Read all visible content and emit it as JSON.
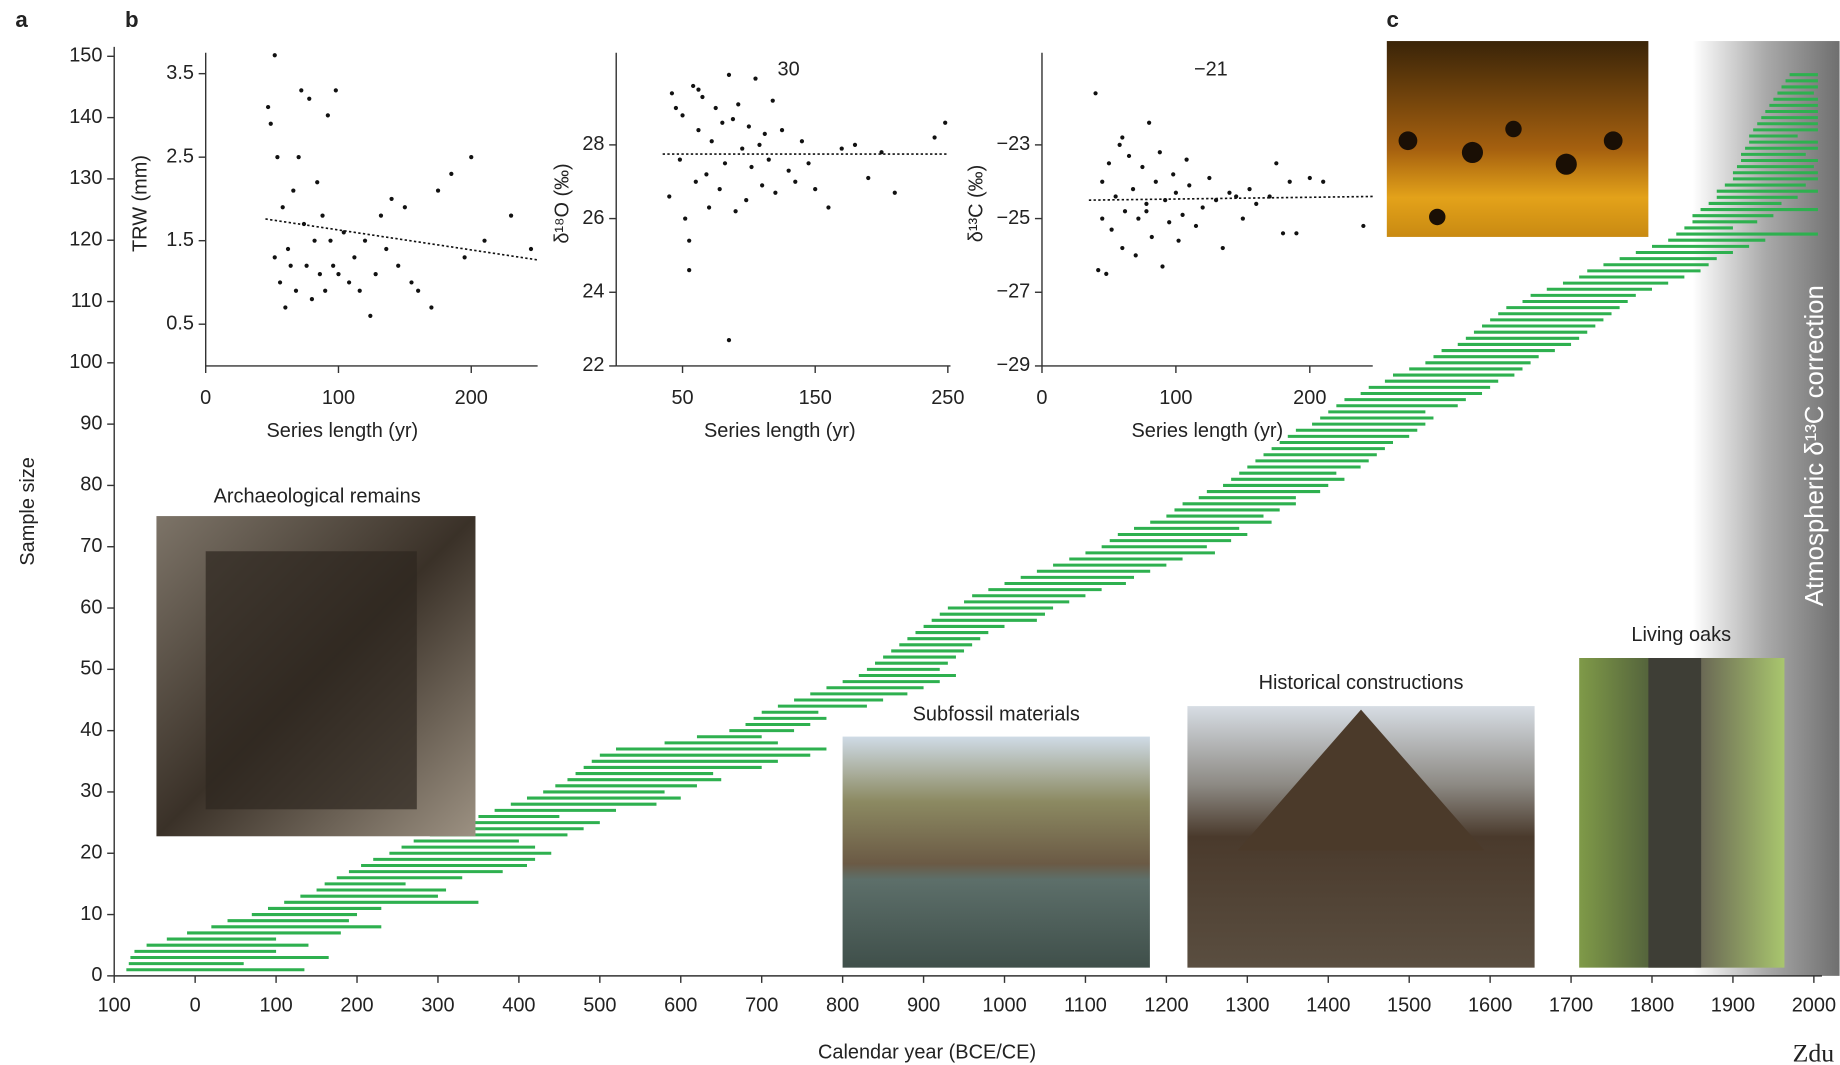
{
  "chart_data": [
    {
      "type": "bar",
      "xlabel": "Calendar year (BCE/CE)",
      "ylabel": "Sample size",
      "xlim": [
        -100,
        2010
      ],
      "xticks": [
        {
          "value": -100,
          "label": "100"
        },
        0,
        100,
        200,
        300,
        400,
        500,
        600,
        700,
        800,
        900,
        1000,
        1100,
        1200,
        1300,
        1400,
        1500,
        1600,
        1700,
        1800,
        1900,
        2000
      ],
      "ylim": [
        0,
        150
      ],
      "yticks": [
        0,
        10,
        20,
        30,
        40,
        50,
        60,
        70,
        80,
        90,
        100,
        110,
        120,
        130,
        140,
        150
      ],
      "color": "#2eb04f",
      "starts": [
        -85,
        -82,
        -80,
        -75,
        -60,
        -35,
        -10,
        20,
        40,
        70,
        90,
        110,
        130,
        150,
        160,
        175,
        190,
        205,
        220,
        240,
        255,
        270,
        290,
        310,
        330,
        350,
        370,
        390,
        410,
        430,
        445,
        460,
        470,
        480,
        490,
        500,
        520,
        580,
        620,
        660,
        680,
        690,
        700,
        720,
        740,
        760,
        780,
        800,
        820,
        830,
        840,
        850,
        860,
        870,
        880,
        890,
        900,
        910,
        920,
        930,
        950,
        960,
        980,
        1000,
        1020,
        1040,
        1060,
        1080,
        1100,
        1120,
        1130,
        1140,
        1160,
        1180,
        1200,
        1210,
        1220,
        1240,
        1250,
        1270,
        1280,
        1290,
        1300,
        1310,
        1320,
        1330,
        1340,
        1350,
        1360,
        1380,
        1390,
        1400,
        1410,
        1420,
        1440,
        1450,
        1470,
        1480,
        1500,
        1520,
        1530,
        1540,
        1560,
        1570,
        1580,
        1590,
        1600,
        1610,
        1620,
        1640,
        1650,
        1670,
        1690,
        1710,
        1720,
        1740,
        1760,
        1780,
        1800,
        1820,
        1830,
        1840,
        1850,
        1850,
        1860,
        1870,
        1880,
        1880,
        1890,
        1900,
        1900,
        1905,
        1910,
        1910,
        1915,
        1920,
        1920,
        1925,
        1930,
        1935,
        1940,
        1945,
        1950,
        1955,
        1960,
        1965,
        1970
      ],
      "ends": [
        135,
        60,
        165,
        100,
        140,
        100,
        180,
        230,
        190,
        200,
        230,
        350,
        300,
        310,
        260,
        330,
        380,
        410,
        420,
        440,
        420,
        400,
        460,
        480,
        500,
        450,
        520,
        570,
        600,
        580,
        620,
        650,
        640,
        700,
        720,
        760,
        780,
        720,
        700,
        740,
        760,
        780,
        770,
        830,
        850,
        880,
        900,
        920,
        940,
        920,
        930,
        940,
        950,
        960,
        970,
        980,
        1000,
        1040,
        1050,
        1060,
        1080,
        1100,
        1120,
        1150,
        1160,
        1180,
        1200,
        1220,
        1260,
        1250,
        1280,
        1300,
        1290,
        1330,
        1320,
        1340,
        1360,
        1360,
        1390,
        1400,
        1420,
        1410,
        1440,
        1450,
        1460,
        1470,
        1480,
        1500,
        1510,
        1520,
        1530,
        1520,
        1560,
        1570,
        1590,
        1600,
        1610,
        1630,
        1640,
        1650,
        1660,
        1680,
        1700,
        1710,
        1720,
        1730,
        1740,
        1750,
        1760,
        1770,
        1780,
        1800,
        1820,
        1840,
        1860,
        1870,
        1880,
        1900,
        1920,
        1940,
        2005,
        1900,
        1930,
        1950,
        2005,
        1960,
        1980,
        2005,
        1990,
        2005,
        2005,
        2000,
        2005,
        1990,
        2005,
        2005,
        1980,
        2005,
        2005,
        2005,
        2005,
        2005,
        2005,
        2000,
        2005,
        2005,
        2005
      ],
      "correction_band": {
        "start": 1850,
        "label": "Atmospheric δ¹³C correction"
      },
      "panel_labels": [
        "a",
        "b",
        "c"
      ],
      "photo_captions": [
        "Archaeological remains",
        "Subfossil materials",
        "Historical constructions",
        "Living oaks"
      ],
      "corner_text": "Zdu"
    },
    {
      "type": "scatter",
      "xlabel": "Series length (yr)",
      "ylabel": "TRW (mm)",
      "color": "#111111",
      "x": [
        47,
        49,
        52,
        54,
        56,
        58,
        60,
        62,
        64,
        66,
        68,
        70,
        72,
        74,
        76,
        78,
        80,
        82,
        84,
        86,
        88,
        90,
        92,
        94,
        96,
        98,
        100,
        104,
        108,
        112,
        116,
        120,
        124,
        128,
        132,
        136,
        140,
        145,
        150,
        155,
        160,
        170,
        175,
        185,
        195,
        200,
        210,
        230,
        245,
        52
      ],
      "values": [
        3.1,
        2.9,
        1.3,
        2.5,
        1.0,
        1.9,
        0.7,
        1.4,
        1.2,
        2.1,
        0.9,
        2.5,
        3.3,
        1.7,
        1.2,
        3.2,
        0.8,
        1.5,
        2.2,
        1.1,
        1.8,
        0.9,
        3.0,
        1.5,
        1.2,
        3.3,
        1.1,
        1.6,
        1.0,
        1.3,
        0.9,
        1.5,
        0.6,
        1.1,
        1.8,
        1.4,
        2.0,
        1.2,
        1.9,
        1.0,
        0.9,
        0.7,
        2.1,
        2.3,
        1.3,
        2.5,
        1.5,
        1.8,
        1.4,
        3.72
      ],
      "xlim": [
        0,
        250
      ],
      "xticks": [
        0,
        100,
        200
      ],
      "ylim": [
        0,
        3.75
      ],
      "yticks": [
        0.5,
        1.5,
        2.5,
        3.5
      ],
      "trend": {
        "x": [
          45,
          250
        ],
        "y": [
          1.76,
          1.27
        ]
      }
    },
    {
      "type": "scatter",
      "xlabel": "Series length (yr)",
      "ylabel": "δ¹⁸O (‰)",
      "color": "#111111",
      "annotation": "30",
      "x": [
        40,
        42,
        45,
        48,
        50,
        52,
        55,
        58,
        60,
        62,
        65,
        68,
        70,
        72,
        75,
        78,
        80,
        82,
        85,
        88,
        90,
        92,
        95,
        98,
        100,
        102,
        105,
        108,
        110,
        112,
        115,
        118,
        120,
        125,
        130,
        135,
        140,
        145,
        150,
        160,
        170,
        180,
        190,
        200,
        210,
        240,
        248,
        85,
        55,
        62
      ],
      "values": [
        26.6,
        29.4,
        29.0,
        27.6,
        28.8,
        26.0,
        25.4,
        29.6,
        27.0,
        28.4,
        29.3,
        27.2,
        26.3,
        28.1,
        29.0,
        26.8,
        28.6,
        27.5,
        22.7,
        28.7,
        26.2,
        29.1,
        27.9,
        26.5,
        28.5,
        27.4,
        29.8,
        28.0,
        26.9,
        28.3,
        27.6,
        29.2,
        26.7,
        28.4,
        27.3,
        27.0,
        28.1,
        27.5,
        26.8,
        26.3,
        27.9,
        28.0,
        27.1,
        27.8,
        26.7,
        28.2,
        28.6,
        29.9,
        24.6,
        29.5
      ],
      "xlim": [
        0,
        252
      ],
      "xticks": [
        50,
        150,
        250
      ],
      "ylim": [
        22,
        30.5
      ],
      "yticks": [
        22,
        24,
        26,
        28
      ],
      "trend": {
        "x": [
          35,
          250
        ],
        "y": [
          27.75,
          27.75
        ]
      }
    },
    {
      "type": "scatter",
      "xlabel": "Series length (yr)",
      "ylabel": "δ¹³C (‰)",
      "color": "#111111",
      "annotation": "−21",
      "x": [
        40,
        42,
        45,
        48,
        50,
        52,
        55,
        58,
        60,
        62,
        65,
        68,
        70,
        72,
        75,
        78,
        80,
        82,
        85,
        88,
        90,
        92,
        95,
        98,
        100,
        102,
        105,
        108,
        110,
        115,
        120,
        125,
        130,
        135,
        140,
        145,
        150,
        155,
        160,
        170,
        175,
        180,
        185,
        190,
        200,
        210,
        240,
        45,
        60,
        78
      ],
      "values": [
        -21.6,
        -26.4,
        -24.0,
        -26.5,
        -23.5,
        -25.3,
        -24.4,
        -23.0,
        -25.8,
        -24.8,
        -23.3,
        -24.2,
        -26.0,
        -25.0,
        -23.6,
        -24.6,
        -22.4,
        -25.5,
        -24.0,
        -23.2,
        -26.3,
        -24.5,
        -25.1,
        -23.8,
        -24.3,
        -25.6,
        -24.9,
        -23.4,
        -24.1,
        -25.2,
        -24.7,
        -23.9,
        -24.5,
        -25.8,
        -24.3,
        -24.4,
        -25.0,
        -24.2,
        -24.6,
        -24.4,
        -23.5,
        -25.4,
        -24.0,
        -25.4,
        -23.9,
        -24.0,
        -25.2,
        -25.0,
        -22.8,
        -24.8
      ],
      "xlim": [
        0,
        247
      ],
      "xticks": [
        0,
        100,
        200
      ],
      "ylim": [
        -29,
        -20.5
      ],
      "yticks": [
        {
          "value": -29,
          "label": "−29"
        },
        {
          "value": -27,
          "label": "−27"
        },
        {
          "value": -25,
          "label": "−25"
        },
        {
          "value": -23,
          "label": "−23"
        }
      ],
      "trend": {
        "x": [
          35,
          247
        ],
        "y": [
          -24.5,
          -24.4
        ]
      }
    }
  ]
}
